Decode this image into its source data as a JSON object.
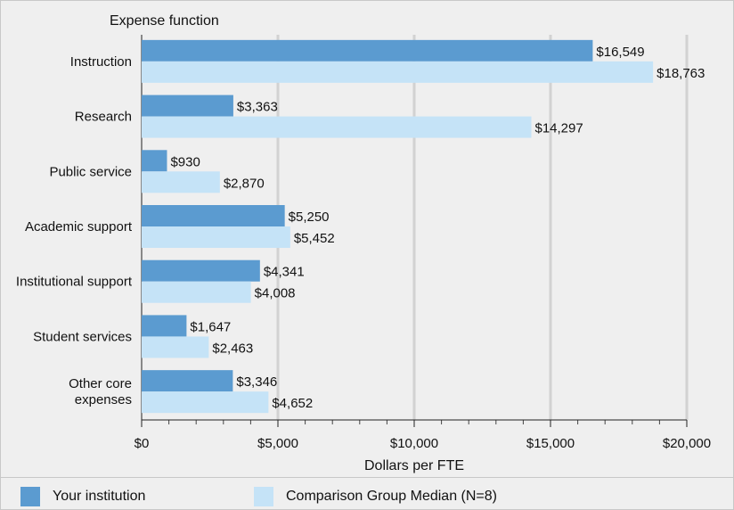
{
  "chart_data": {
    "type": "bar",
    "orientation": "horizontal",
    "title": "Expense function",
    "xlabel": "Dollars per FTE",
    "xlim": [
      0,
      20000
    ],
    "xticks": [
      0,
      5000,
      10000,
      15000,
      20000
    ],
    "xtick_labels": [
      "$0",
      "$5,000",
      "$10,000",
      "$15,000",
      "$20,000"
    ],
    "categories": [
      [
        "Instruction"
      ],
      [
        "Research"
      ],
      [
        "Public service"
      ],
      [
        "Academic support"
      ],
      [
        "Institutional support"
      ],
      [
        "Student services"
      ],
      [
        "Other core",
        "expenses"
      ]
    ],
    "series": [
      {
        "name": "Your institution",
        "color": "#5b9bd0",
        "values": [
          16549,
          3363,
          930,
          5250,
          4341,
          1647,
          3346
        ],
        "labels": [
          "$16,549",
          "$3,363",
          "$930",
          "$5,250",
          "$4,341",
          "$1,647",
          "$3,346"
        ]
      },
      {
        "name": "Comparison Group Median (N=8)",
        "color": "#c5e3f7",
        "values": [
          18763,
          14297,
          2870,
          5452,
          4008,
          2463,
          4652
        ],
        "labels": [
          "$18,763",
          "$14,297",
          "$2,870",
          "$5,452",
          "$4,008",
          "$2,463",
          "$4,652"
        ]
      }
    ]
  }
}
